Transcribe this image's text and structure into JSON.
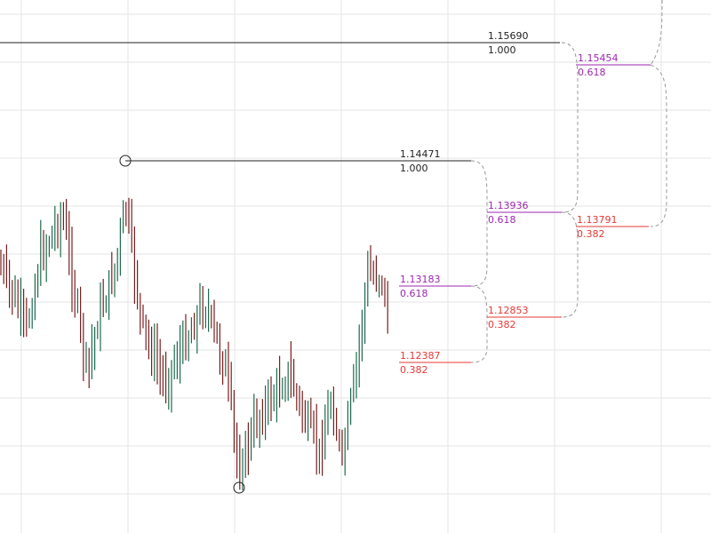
{
  "levels": [
    {
      "price": "1.15690",
      "ratio": "1.000",
      "color": "#222222"
    },
    {
      "price": "1.15454",
      "ratio": "0.618",
      "color": "#9c27b0"
    },
    {
      "price": "1.14471",
      "ratio": "1.000",
      "color": "#222222"
    },
    {
      "price": "1.13936",
      "ratio": "0.618",
      "color": "#9c27b0"
    },
    {
      "price": "1.13791",
      "ratio": "0.382",
      "color": "#e53935"
    },
    {
      "price": "1.13183",
      "ratio": "0.618",
      "color": "#9c27b0"
    },
    {
      "price": "1.12853",
      "ratio": "0.382",
      "color": "#e53935"
    },
    {
      "price": "1.12387",
      "ratio": "0.382",
      "color": "#e53935"
    }
  ]
}
